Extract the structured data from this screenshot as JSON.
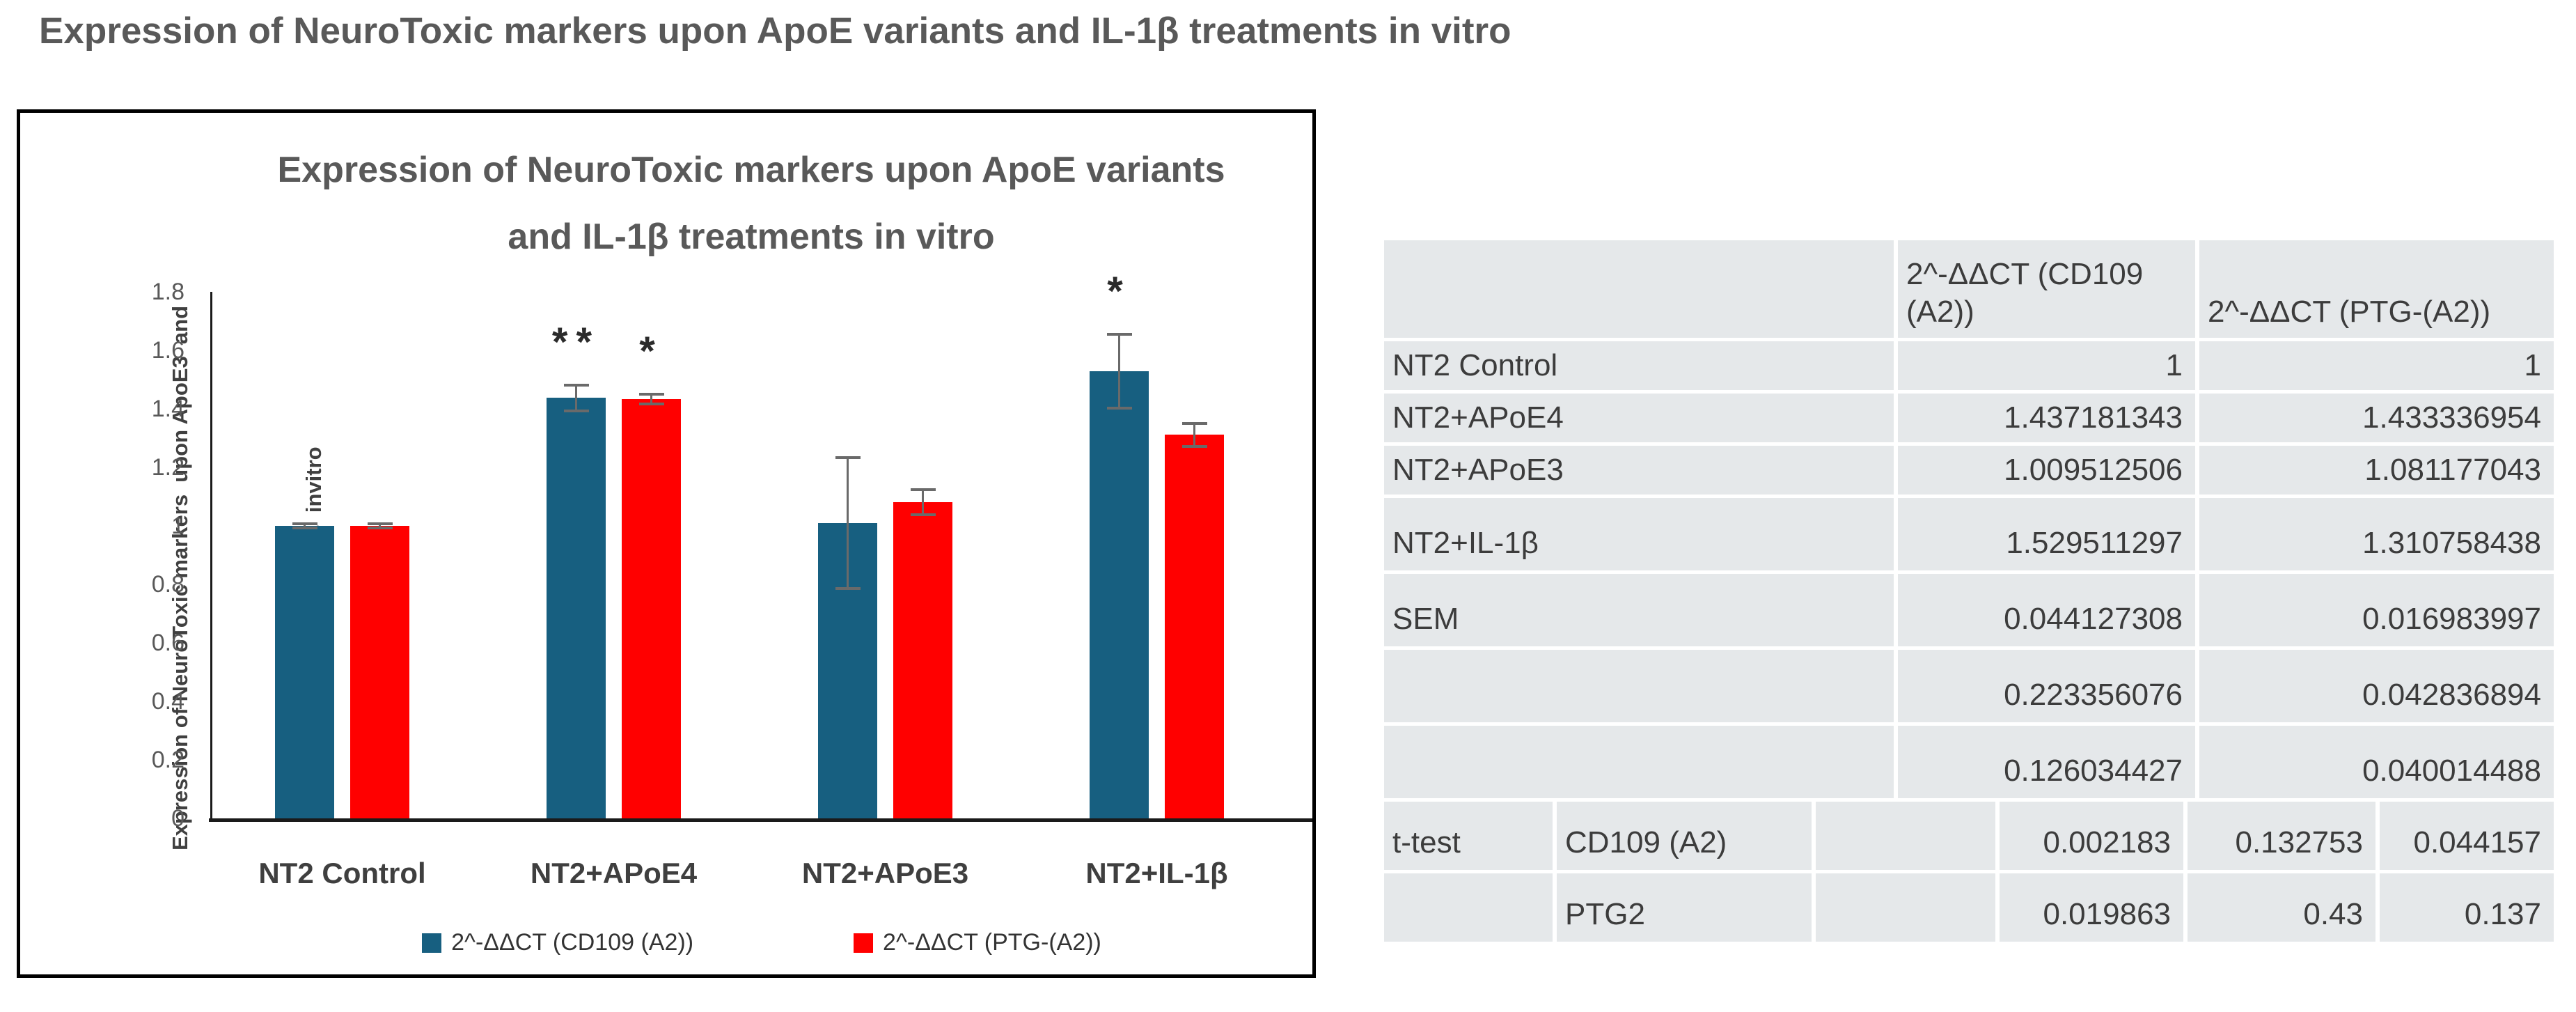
{
  "page": {
    "title": "Expression of NeuroToxic markers upon ApoE variants and IL-1β treatments in vitro"
  },
  "chart": {
    "title_lines": [
      "Expression of NeuroToxic markers upon ApoE variants",
      "and IL-1β treatments in vitro"
    ],
    "y_axis_title_lines": [
      "Expression of NeuroToxic markers  upon ApoE3  and",
      "ApoE4 treatments  invitro"
    ]
  },
  "chart_data": {
    "type": "bar",
    "title": "Expression of NeuroToxic markers upon ApoE variants and IL-1β treatments in vitro",
    "ylabel": "Expression of NeuroToxic markers upon ApoE3 and ApoE4 treatments invitro",
    "categories": [
      "NT2 Control",
      "NT2+APoE4",
      "NT2+APoE3",
      "NT2+IL-1β"
    ],
    "series": [
      {
        "name": "2^-ΔΔCT (CD109 (A2))",
        "color": "#175f80",
        "values": [
          1,
          1.437181343,
          1.009512506,
          1.529511297
        ],
        "sem": [
          0.007,
          0.044127308,
          0.223356076,
          0.126034427
        ]
      },
      {
        "name": "2^-ΔΔCT (PTG-(A2))",
        "color": "#ff0000",
        "values": [
          1,
          1.433336954,
          1.081177043,
          1.310758438
        ],
        "sem": [
          0.007,
          0.016983997,
          0.042836894,
          0.040014488
        ]
      }
    ],
    "annotations": [
      {
        "text": "**",
        "category_index": 1,
        "series_index": 0
      },
      {
        "text": "*",
        "category_index": 1,
        "series_index": 1
      },
      {
        "text": "*",
        "category_index": 3,
        "series_index": 0
      }
    ],
    "ylim": [
      0,
      1.8
    ],
    "yticks": [
      "1.8",
      "1.6",
      "1.4",
      "1.2",
      "1",
      "0.8",
      "0.6",
      "0.4",
      "0.2",
      "0"
    ],
    "grid": false,
    "legend_position": "bottom"
  },
  "table": {
    "header": [
      "",
      "2^-ΔΔCT (CD109 (A2))",
      "2^-ΔΔCT (PTG-(A2))"
    ],
    "rows": [
      {
        "label": "NT2 Control",
        "cd109": "1",
        "ptg": "1",
        "tall": false
      },
      {
        "label": "NT2+APoE4",
        "cd109": "1.437181343",
        "ptg": "1.433336954",
        "tall": false
      },
      {
        "label": "NT2+APoE3",
        "cd109": "1.009512506",
        "ptg": "1.081177043",
        "tall": false
      },
      {
        "label": "NT2+IL-1β",
        "cd109": "1.529511297",
        "ptg": "1.310758438",
        "tall": true
      },
      {
        "label": "SEM",
        "cd109": "0.044127308",
        "ptg": "0.016983997",
        "tall": true
      },
      {
        "label": "",
        "cd109": "0.223356076",
        "ptg": "0.042836894",
        "tall": true
      },
      {
        "label": "",
        "cd109": "0.126034427",
        "ptg": "0.040014488",
        "tall": true
      }
    ],
    "ttest_rows": [
      [
        "t-test",
        "CD109 (A2)",
        "",
        "0.002183",
        "0.132753",
        "0.044157"
      ],
      [
        "",
        "PTG2",
        "",
        "0.019863",
        "0.43",
        "0.137"
      ]
    ]
  }
}
